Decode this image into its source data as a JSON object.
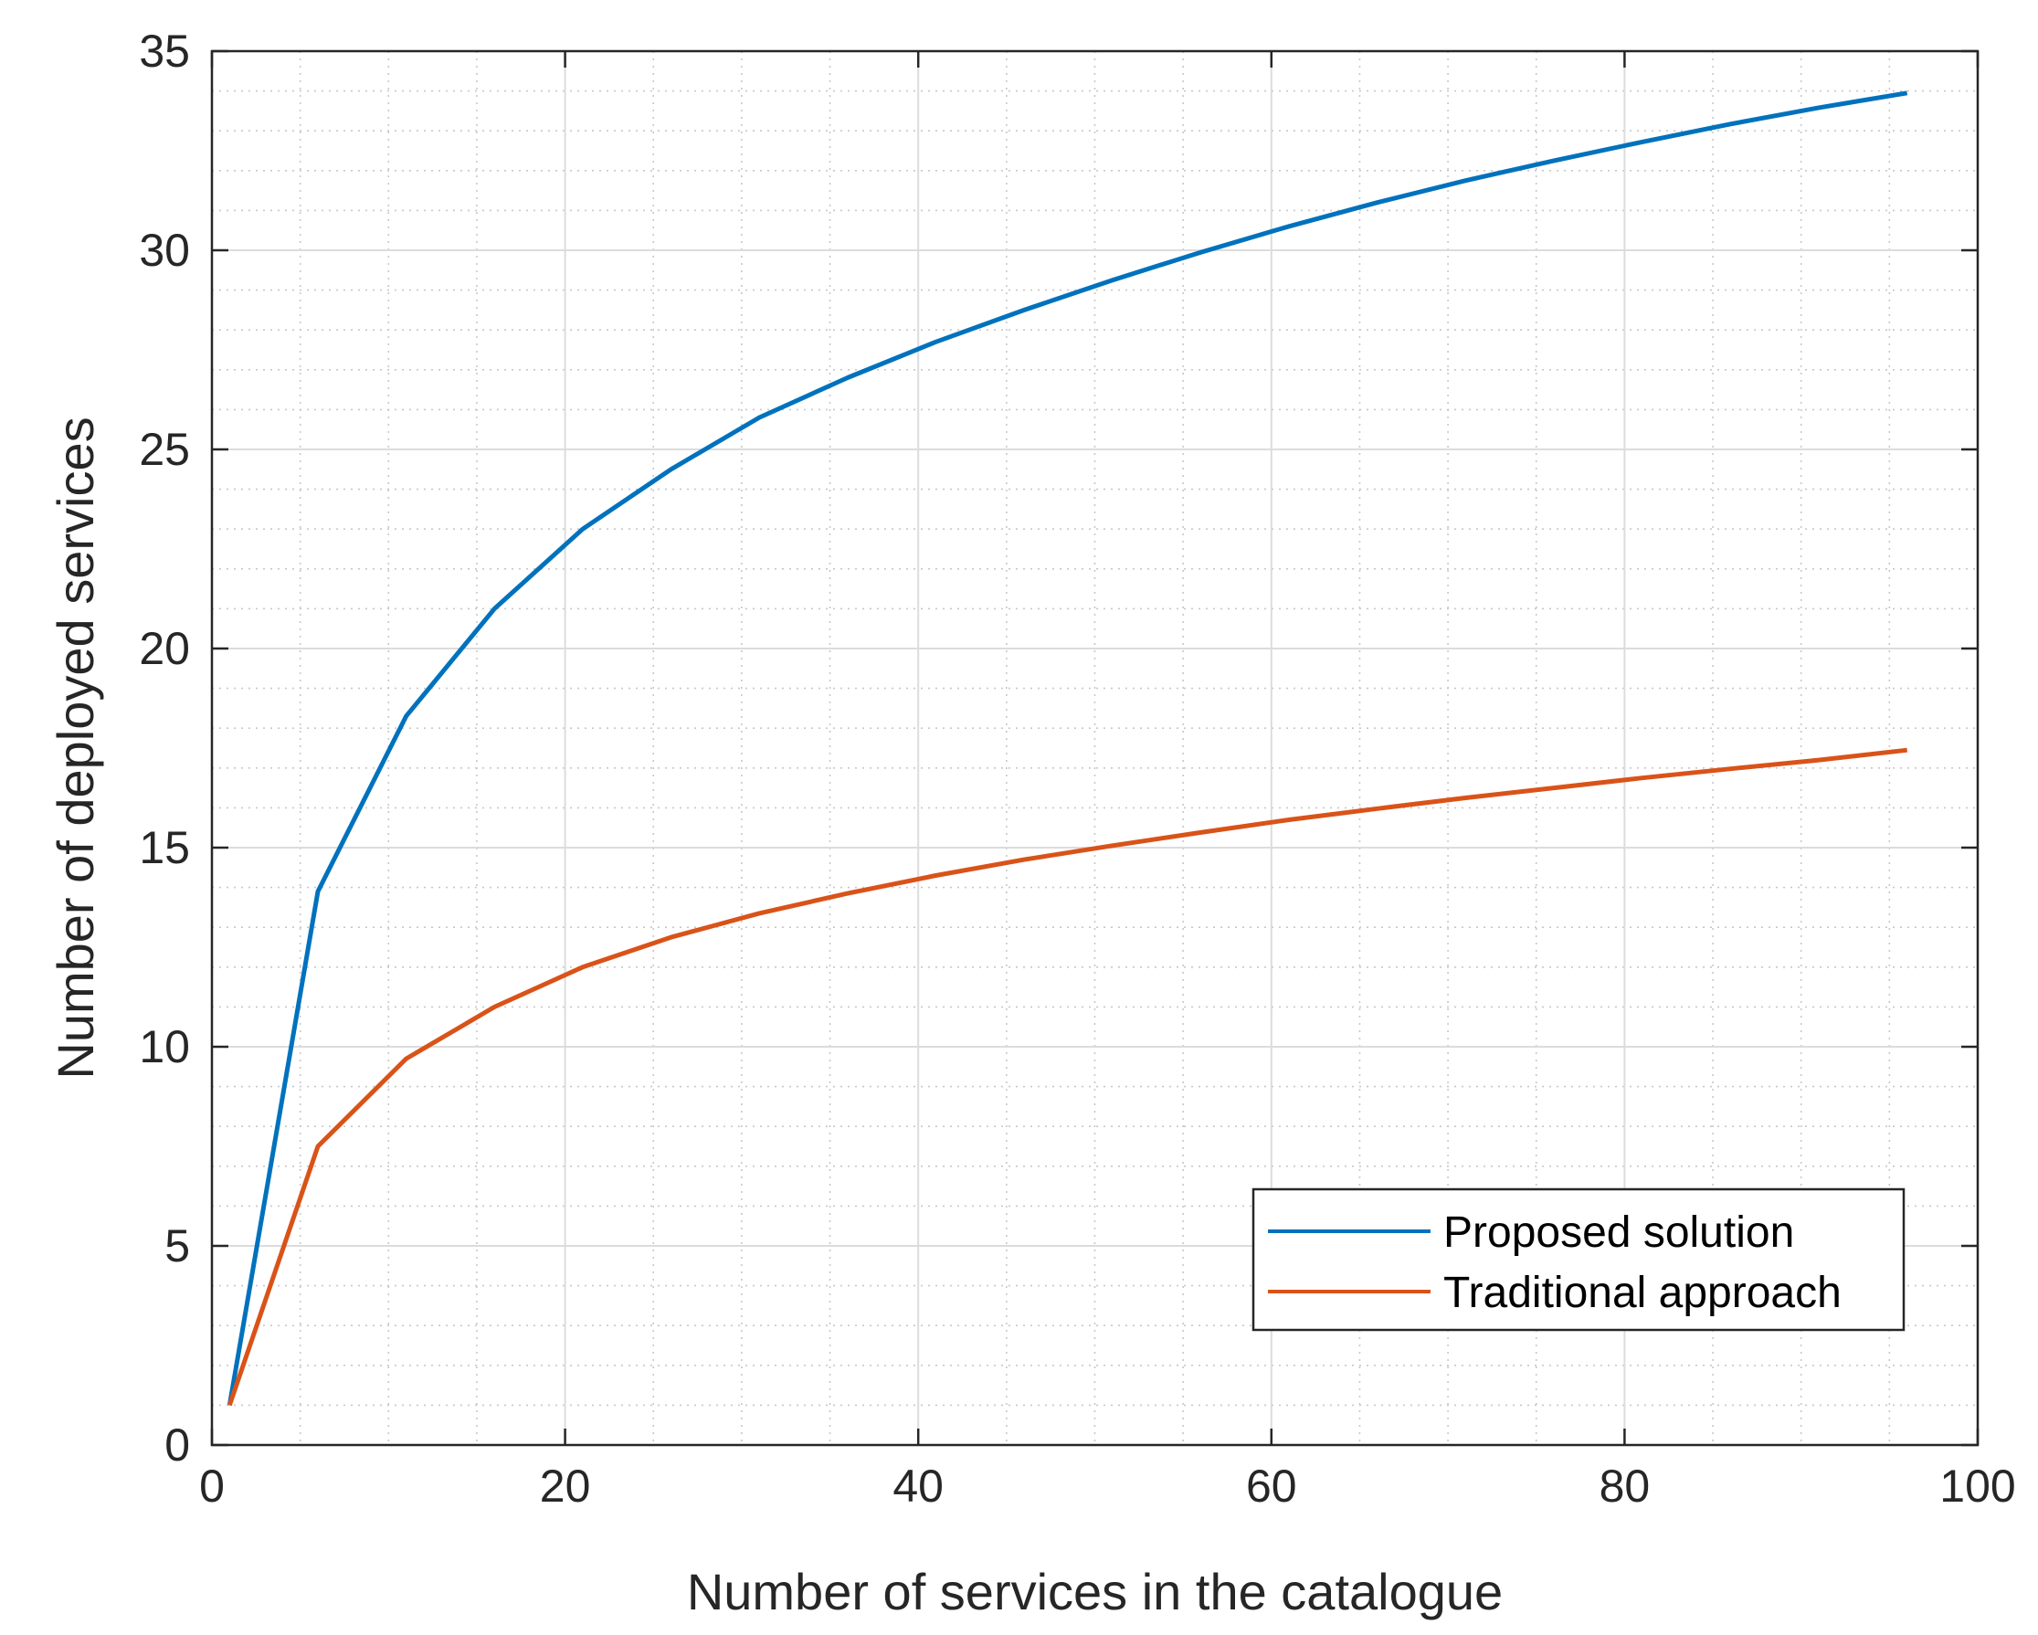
{
  "chart_data": {
    "type": "line",
    "title": "",
    "xlabel": "Number of services in the catalogue",
    "ylabel": "Number of deployed services",
    "xlim": [
      0,
      100
    ],
    "ylim": [
      0,
      35
    ],
    "xticks": [
      0,
      20,
      40,
      60,
      80,
      100
    ],
    "yticks": [
      0,
      5,
      10,
      15,
      20,
      25,
      30,
      35
    ],
    "xtick_labels": [
      "0",
      "20",
      "40",
      "60",
      "80",
      "100"
    ],
    "ytick_labels": [
      "0",
      "5",
      "10",
      "15",
      "20",
      "25",
      "30",
      "35"
    ],
    "grid": true,
    "minor_grid": true,
    "legend_position": "bottom-right",
    "x": [
      1,
      6,
      11,
      16,
      21,
      26,
      31,
      36,
      41,
      46,
      51,
      56,
      61,
      66,
      71,
      76,
      81,
      86,
      91,
      96
    ],
    "series": [
      {
        "name": "Proposed solution",
        "color": "#0072BD",
        "values": [
          1,
          13.9,
          18.3,
          21.0,
          23.0,
          24.5,
          25.8,
          26.8,
          27.7,
          28.5,
          29.25,
          29.95,
          30.6,
          31.2,
          31.75,
          32.25,
          32.72,
          33.17,
          33.58,
          33.95
        ]
      },
      {
        "name": "Traditional approach",
        "color": "#D95319",
        "values": [
          1,
          7.5,
          9.7,
          11.0,
          12.0,
          12.75,
          13.35,
          13.85,
          14.3,
          14.7,
          15.05,
          15.38,
          15.7,
          15.98,
          16.25,
          16.5,
          16.75,
          16.98,
          17.2,
          17.45
        ]
      }
    ]
  }
}
